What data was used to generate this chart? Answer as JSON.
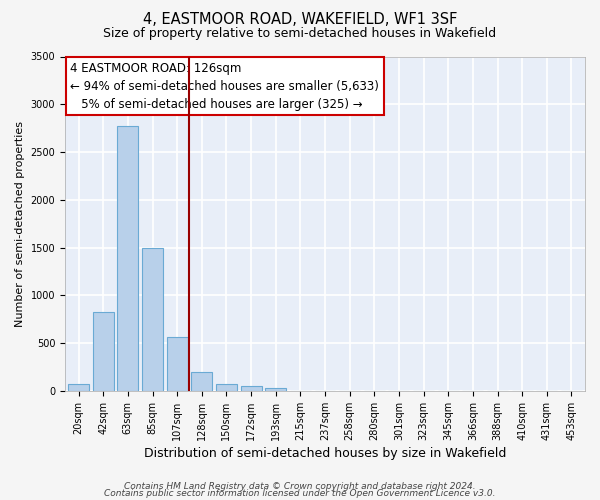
{
  "title": "4, EASTMOOR ROAD, WAKEFIELD, WF1 3SF",
  "subtitle": "Size of property relative to semi-detached houses in Wakefield",
  "xlabel": "Distribution of semi-detached houses by size in Wakefield",
  "ylabel": "Number of semi-detached properties",
  "bar_labels": [
    "20sqm",
    "42sqm",
    "63sqm",
    "85sqm",
    "107sqm",
    "128sqm",
    "150sqm",
    "172sqm",
    "193sqm",
    "215sqm",
    "237sqm",
    "258sqm",
    "280sqm",
    "301sqm",
    "323sqm",
    "345sqm",
    "366sqm",
    "388sqm",
    "410sqm",
    "431sqm",
    "453sqm"
  ],
  "bar_values": [
    75,
    825,
    2775,
    1500,
    560,
    200,
    75,
    50,
    30,
    0,
    0,
    0,
    0,
    0,
    0,
    0,
    0,
    0,
    0,
    0,
    0
  ],
  "bar_color": "#b8d0ea",
  "bar_edgecolor": "#6aaad4",
  "vline_x_index": 4.5,
  "vline_color": "#990000",
  "ylim": [
    0,
    3500
  ],
  "yticks": [
    0,
    500,
    1000,
    1500,
    2000,
    2500,
    3000,
    3500
  ],
  "annotation_title": "4 EASTMOOR ROAD: 126sqm",
  "annotation_line1": "← 94% of semi-detached houses are smaller (5,633)",
  "annotation_line2": "   5% of semi-detached houses are larger (325) →",
  "annotation_box_color": "#ffffff",
  "annotation_box_edgecolor": "#cc0000",
  "footer1": "Contains HM Land Registry data © Crown copyright and database right 2024.",
  "footer2": "Contains public sector information licensed under the Open Government Licence v3.0.",
  "bg_color": "#e8eef8",
  "grid_color": "#ffffff",
  "fig_bg_color": "#f5f5f5",
  "title_fontsize": 10.5,
  "subtitle_fontsize": 9,
  "xlabel_fontsize": 9,
  "ylabel_fontsize": 8,
  "tick_fontsize": 7,
  "footer_fontsize": 6.5,
  "annotation_fontsize": 8.5
}
